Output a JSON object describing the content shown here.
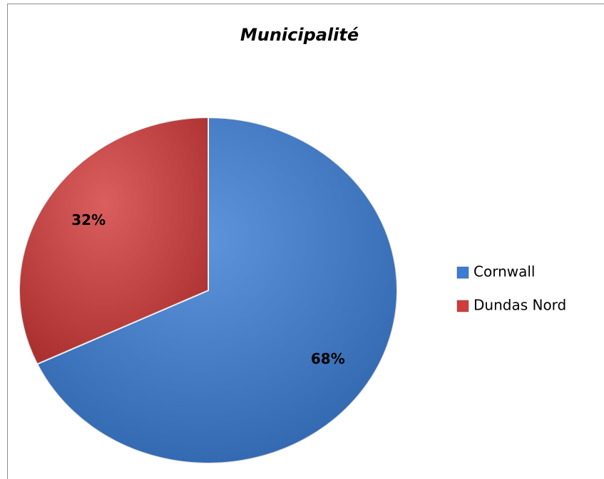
{
  "chart_data": {
    "type": "pie",
    "title": "Municipalité",
    "categories": [
      "Cornwall",
      "Dundas Nord"
    ],
    "values": [
      68,
      32
    ],
    "value_labels": [
      "68%",
      "32%"
    ],
    "colors": [
      "#3b7dd4",
      "#d23b3b"
    ],
    "legend": "right"
  }
}
